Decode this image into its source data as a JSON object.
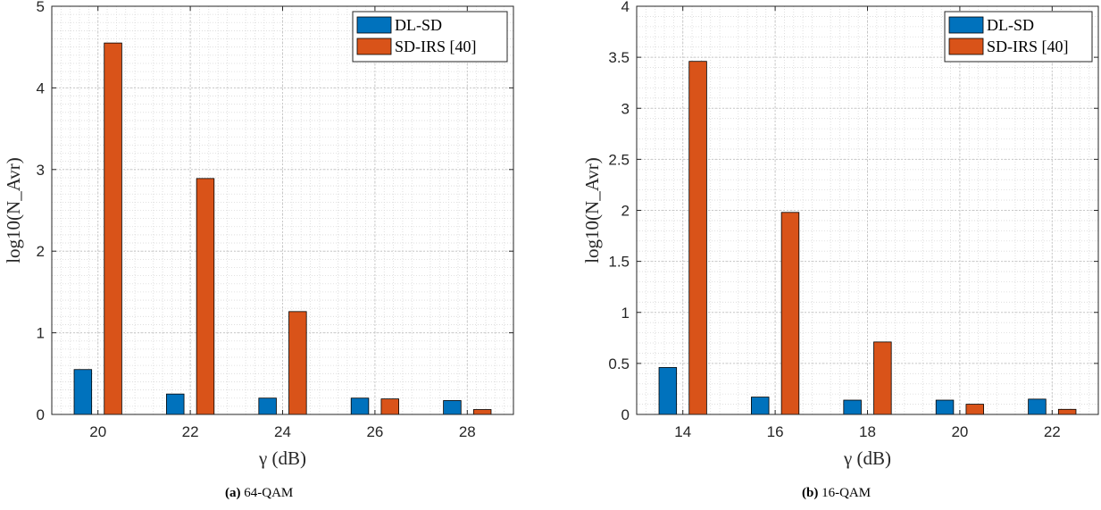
{
  "chart_data": [
    {
      "type": "bar",
      "caption_tag": "(a)",
      "caption_text": "64-QAM",
      "xlabel": "γ (dB)",
      "ylabel": "log10(N_Avr)",
      "categories": [
        "20",
        "22",
        "24",
        "26",
        "28"
      ],
      "ylim": [
        0,
        5
      ],
      "yticks": [
        0,
        1,
        2,
        3,
        4,
        5
      ],
      "ytick_labels": [
        "0",
        "1",
        "2",
        "3",
        "4",
        "5"
      ],
      "grid": true,
      "minor_grid": true,
      "legend_position": "top-right",
      "series": [
        {
          "name": "DL-SD",
          "color": "#0072BD",
          "values": [
            0.55,
            0.25,
            0.2,
            0.2,
            0.17
          ]
        },
        {
          "name": "SD-IRS [40]",
          "color": "#D95319",
          "values": [
            4.55,
            2.89,
            1.26,
            0.19,
            0.06
          ]
        }
      ]
    },
    {
      "type": "bar",
      "caption_tag": "(b)",
      "caption_text": "16-QAM",
      "xlabel": "γ (dB)",
      "ylabel": "log10(N_Avr)",
      "categories": [
        "14",
        "16",
        "18",
        "20",
        "22"
      ],
      "ylim": [
        0,
        4
      ],
      "yticks": [
        0,
        0.5,
        1,
        1.5,
        2,
        2.5,
        3,
        3.5,
        4
      ],
      "ytick_labels": [
        "0",
        "0.5",
        "1",
        "1.5",
        "2",
        "2.5",
        "3",
        "3.5",
        "4"
      ],
      "grid": true,
      "minor_grid": true,
      "legend_position": "top-right",
      "series": [
        {
          "name": "DL-SD",
          "color": "#0072BD",
          "values": [
            0.46,
            0.17,
            0.14,
            0.14,
            0.15
          ]
        },
        {
          "name": "SD-IRS [40]",
          "color": "#D95319",
          "values": [
            3.46,
            1.98,
            0.71,
            0.1,
            0.05
          ]
        }
      ]
    }
  ]
}
